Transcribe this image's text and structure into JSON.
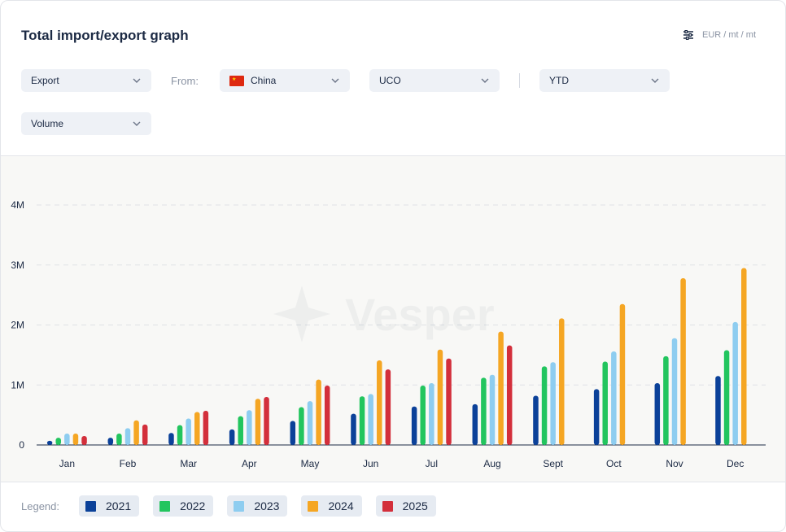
{
  "header": {
    "title": "Total import/export graph",
    "units_label": "EUR / mt / mt"
  },
  "filters": {
    "flow": "Export",
    "from_label": "From:",
    "country": "China",
    "product": "UCO",
    "period": "YTD",
    "metric": "Volume"
  },
  "watermark": "Vesper",
  "legend": {
    "label": "Legend:",
    "items": [
      {
        "label": "2021",
        "color": "#0b4199"
      },
      {
        "label": "2022",
        "color": "#22c55e"
      },
      {
        "label": "2023",
        "color": "#8ecdf0"
      },
      {
        "label": "2024",
        "color": "#f5a623"
      },
      {
        "label": "2025",
        "color": "#d32f3b"
      }
    ]
  },
  "chart_data": {
    "type": "bar",
    "title": "Total import/export graph",
    "categories": [
      "Jan",
      "Feb",
      "Mar",
      "Apr",
      "May",
      "Jun",
      "Jul",
      "Aug",
      "Sept",
      "Oct",
      "Nov",
      "Dec"
    ],
    "ylim": [
      0,
      4000000
    ],
    "yticks": [
      0,
      1000000,
      2000000,
      3000000,
      4000000
    ],
    "ytick_labels": [
      "0",
      "1M",
      "2M",
      "3M",
      "4M"
    ],
    "grid": true,
    "series": [
      {
        "name": "2021",
        "color": "#0b4199",
        "values": [
          70000,
          120000,
          200000,
          260000,
          400000,
          520000,
          640000,
          680000,
          820000,
          930000,
          1030000,
          1150000
        ]
      },
      {
        "name": "2022",
        "color": "#22c55e",
        "values": [
          120000,
          190000,
          330000,
          480000,
          630000,
          810000,
          990000,
          1120000,
          1310000,
          1390000,
          1480000,
          1580000
        ]
      },
      {
        "name": "2023",
        "color": "#8ecdf0",
        "values": [
          190000,
          280000,
          440000,
          580000,
          730000,
          850000,
          1030000,
          1170000,
          1380000,
          1560000,
          1780000,
          2050000
        ]
      },
      {
        "name": "2024",
        "color": "#f5a623",
        "values": [
          190000,
          410000,
          550000,
          770000,
          1090000,
          1410000,
          1590000,
          1890000,
          2110000,
          2350000,
          2780000,
          2950000
        ]
      },
      {
        "name": "2025",
        "color": "#d32f3b",
        "values": [
          150000,
          340000,
          570000,
          800000,
          990000,
          1260000,
          1440000,
          1660000,
          null,
          null,
          null,
          null
        ]
      }
    ]
  }
}
